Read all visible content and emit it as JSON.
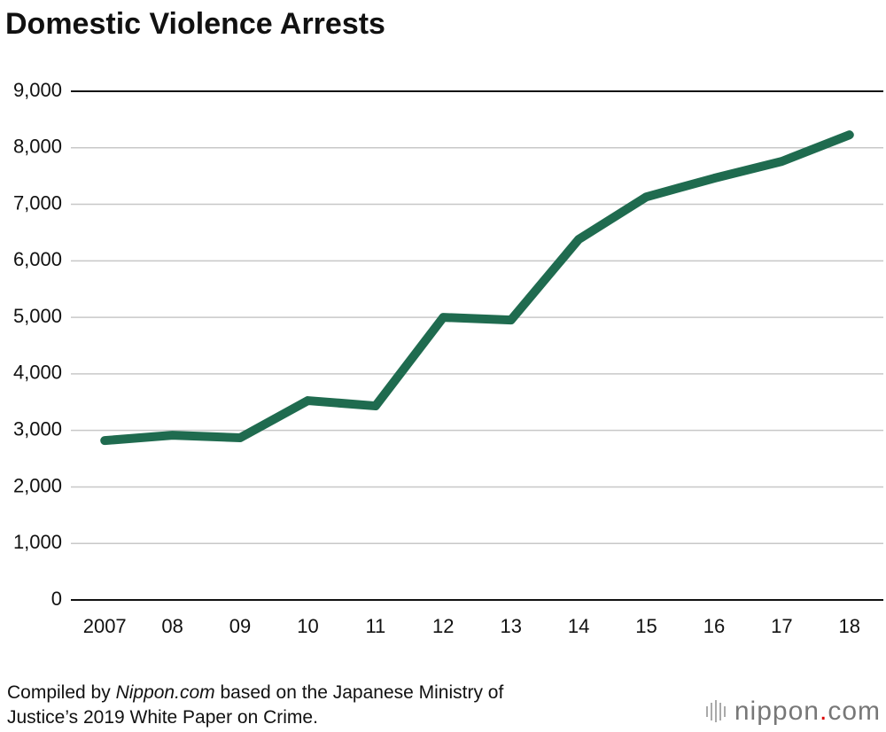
{
  "chart_data": {
    "type": "line",
    "title": "Domestic Violence Arrests",
    "categories": [
      "2007",
      "08",
      "09",
      "10",
      "11",
      "12",
      "13",
      "14",
      "15",
      "16",
      "17",
      "18"
    ],
    "series": [
      {
        "name": "Domestic violence arrests",
        "color": "#1f6b4f",
        "values": [
          2820,
          2915,
          2870,
          3527,
          3433,
          5000,
          4953,
          6380,
          7132,
          7461,
          7759,
          8229
        ]
      }
    ],
    "ylim": [
      0,
      9000
    ],
    "yticks": [
      0,
      {
        "value": 1000,
        "label": "1,000"
      },
      {
        "value": 2000,
        "label": "2,000"
      },
      {
        "value": 3000,
        "label": "3,000"
      },
      {
        "value": 4000,
        "label": "4,000"
      },
      {
        "value": 5000,
        "label": "5,000"
      },
      {
        "value": 6000,
        "label": "6,000"
      },
      {
        "value": 7000,
        "label": "7,000"
      },
      {
        "value": 8000,
        "label": "8,000"
      },
      {
        "value": 9000,
        "label": "9,000"
      }
    ],
    "grid": true
  },
  "caption": [
    "Compiled by ",
    "Nippon.com",
    " based on the Japanese Ministry of",
    "Justice’s 2019 White Paper on Crime."
  ],
  "logo": [
    "nippon",
    ".",
    "com"
  ]
}
